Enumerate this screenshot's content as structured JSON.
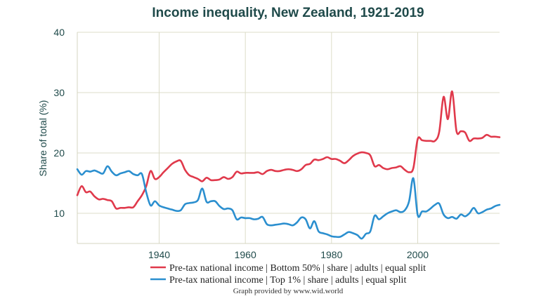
{
  "chart_data": {
    "type": "line",
    "title": "Income inequality, New Zealand, 1921-2019",
    "ylabel": "Share of total (%)",
    "xlabel": "",
    "xlim": [
      1921,
      2019
    ],
    "ylim": [
      5,
      40
    ],
    "x_ticks": [
      1940,
      1960,
      1980,
      2000
    ],
    "y_ticks": [
      10,
      20,
      30,
      40
    ],
    "grid": true,
    "legend_position": "bottom",
    "series": [
      {
        "name": "Pre-tax national income | Bottom 50% | share | adults | equal split",
        "color": "#e0394b",
        "points": [
          [
            1921,
            13.0
          ],
          [
            1922,
            14.5
          ],
          [
            1923,
            13.5
          ],
          [
            1924,
            13.6
          ],
          [
            1925,
            12.8
          ],
          [
            1926,
            12.3
          ],
          [
            1927,
            12.4
          ],
          [
            1928,
            12.2
          ],
          [
            1929,
            12.0
          ],
          [
            1930,
            10.8
          ],
          [
            1931,
            10.9
          ],
          [
            1932,
            10.9
          ],
          [
            1933,
            11.0
          ],
          [
            1934,
            11.0
          ],
          [
            1935,
            12.0
          ],
          [
            1936,
            13.0
          ],
          [
            1937,
            14.5
          ],
          [
            1938,
            17.0
          ],
          [
            1939,
            15.7
          ],
          [
            1940,
            16.0
          ],
          [
            1941,
            16.8
          ],
          [
            1942,
            17.5
          ],
          [
            1943,
            18.2
          ],
          [
            1944,
            18.6
          ],
          [
            1945,
            18.7
          ],
          [
            1946,
            17.2
          ],
          [
            1947,
            16.3
          ],
          [
            1948,
            16.0
          ],
          [
            1949,
            15.7
          ],
          [
            1950,
            15.3
          ],
          [
            1951,
            15.9
          ],
          [
            1952,
            15.5
          ],
          [
            1953,
            15.5
          ],
          [
            1954,
            15.6
          ],
          [
            1955,
            16.0
          ],
          [
            1956,
            15.7
          ],
          [
            1957,
            16.0
          ],
          [
            1958,
            16.9
          ],
          [
            1959,
            16.6
          ],
          [
            1960,
            16.7
          ],
          [
            1961,
            16.7
          ],
          [
            1962,
            16.7
          ],
          [
            1963,
            16.8
          ],
          [
            1964,
            16.5
          ],
          [
            1965,
            17.0
          ],
          [
            1966,
            17.2
          ],
          [
            1967,
            17.0
          ],
          [
            1968,
            17.0
          ],
          [
            1969,
            17.2
          ],
          [
            1970,
            17.3
          ],
          [
            1971,
            17.2
          ],
          [
            1972,
            17.0
          ],
          [
            1973,
            17.3
          ],
          [
            1974,
            18.0
          ],
          [
            1975,
            18.2
          ],
          [
            1976,
            18.9
          ],
          [
            1977,
            18.8
          ],
          [
            1978,
            19.0
          ],
          [
            1979,
            19.3
          ],
          [
            1980,
            19.0
          ],
          [
            1981,
            19.0
          ],
          [
            1982,
            18.7
          ],
          [
            1983,
            18.3
          ],
          [
            1984,
            18.8
          ],
          [
            1985,
            19.5
          ],
          [
            1986,
            19.9
          ],
          [
            1987,
            20.1
          ],
          [
            1988,
            20.0
          ],
          [
            1989,
            19.6
          ],
          [
            1990,
            17.8
          ],
          [
            1991,
            18.0
          ],
          [
            1992,
            17.5
          ],
          [
            1993,
            17.3
          ],
          [
            1994,
            17.5
          ],
          [
            1995,
            17.6
          ],
          [
            1996,
            17.8
          ],
          [
            1997,
            17.2
          ],
          [
            1998,
            16.8
          ],
          [
            1999,
            17.5
          ],
          [
            2000,
            22.3
          ],
          [
            2001,
            22.1
          ],
          [
            2002,
            22.0
          ],
          [
            2003,
            22.0
          ],
          [
            2004,
            22.0
          ],
          [
            2005,
            23.5
          ],
          [
            2006,
            29.3
          ],
          [
            2007,
            25.6
          ],
          [
            2008,
            30.2
          ],
          [
            2009,
            23.6
          ],
          [
            2010,
            23.6
          ],
          [
            2011,
            23.4
          ],
          [
            2012,
            22.0
          ],
          [
            2013,
            22.4
          ],
          [
            2014,
            22.4
          ],
          [
            2015,
            22.5
          ],
          [
            2016,
            23.0
          ],
          [
            2017,
            22.7
          ],
          [
            2018,
            22.7
          ],
          [
            2019,
            22.6
          ]
        ]
      },
      {
        "name": "Pre-tax national income | Top 1% | share | adults | equal split",
        "color": "#2b8fcf",
        "points": [
          [
            1921,
            17.3
          ],
          [
            1922,
            16.4
          ],
          [
            1923,
            17.0
          ],
          [
            1924,
            16.9
          ],
          [
            1925,
            17.1
          ],
          [
            1926,
            16.8
          ],
          [
            1927,
            16.6
          ],
          [
            1928,
            17.8
          ],
          [
            1929,
            16.9
          ],
          [
            1930,
            16.3
          ],
          [
            1931,
            16.6
          ],
          [
            1932,
            16.8
          ],
          [
            1933,
            17.0
          ],
          [
            1934,
            16.5
          ],
          [
            1935,
            16.3
          ],
          [
            1936,
            16.5
          ],
          [
            1937,
            13.5
          ],
          [
            1938,
            11.3
          ],
          [
            1939,
            12.0
          ],
          [
            1940,
            11.3
          ],
          [
            1941,
            11.0
          ],
          [
            1942,
            10.8
          ],
          [
            1943,
            10.6
          ],
          [
            1944,
            10.4
          ],
          [
            1945,
            10.5
          ],
          [
            1946,
            11.5
          ],
          [
            1947,
            11.7
          ],
          [
            1948,
            11.8
          ],
          [
            1949,
            12.2
          ],
          [
            1950,
            14.1
          ],
          [
            1951,
            11.9
          ],
          [
            1952,
            12.0
          ],
          [
            1953,
            12.0
          ],
          [
            1954,
            11.2
          ],
          [
            1955,
            10.7
          ],
          [
            1956,
            10.8
          ],
          [
            1957,
            10.5
          ],
          [
            1958,
            9.0
          ],
          [
            1959,
            9.3
          ],
          [
            1960,
            9.2
          ],
          [
            1961,
            9.2
          ],
          [
            1962,
            9.0
          ],
          [
            1963,
            9.1
          ],
          [
            1964,
            9.4
          ],
          [
            1965,
            8.2
          ],
          [
            1966,
            8.0
          ],
          [
            1967,
            8.1
          ],
          [
            1968,
            8.2
          ],
          [
            1969,
            8.3
          ],
          [
            1970,
            8.2
          ],
          [
            1971,
            8.0
          ],
          [
            1972,
            8.5
          ],
          [
            1973,
            9.3
          ],
          [
            1974,
            9.0
          ],
          [
            1975,
            7.5
          ],
          [
            1976,
            8.7
          ],
          [
            1977,
            7.0
          ],
          [
            1978,
            6.7
          ],
          [
            1979,
            6.5
          ],
          [
            1980,
            6.2
          ],
          [
            1981,
            6.1
          ],
          [
            1982,
            6.1
          ],
          [
            1983,
            6.5
          ],
          [
            1984,
            6.9
          ],
          [
            1985,
            6.7
          ],
          [
            1986,
            6.4
          ],
          [
            1987,
            5.8
          ],
          [
            1988,
            6.6
          ],
          [
            1989,
            7.0
          ],
          [
            1990,
            9.6
          ],
          [
            1991,
            9.0
          ],
          [
            1992,
            9.5
          ],
          [
            1993,
            10.0
          ],
          [
            1994,
            10.3
          ],
          [
            1995,
            10.5
          ],
          [
            1996,
            10.2
          ],
          [
            1997,
            10.5
          ],
          [
            1998,
            12.0
          ],
          [
            1999,
            15.8
          ],
          [
            2000,
            9.7
          ],
          [
            2001,
            10.3
          ],
          [
            2002,
            10.3
          ],
          [
            2003,
            10.8
          ],
          [
            2004,
            11.4
          ],
          [
            2005,
            11.6
          ],
          [
            2006,
            9.8
          ],
          [
            2007,
            9.2
          ],
          [
            2008,
            9.4
          ],
          [
            2009,
            9.1
          ],
          [
            2010,
            9.8
          ],
          [
            2011,
            9.5
          ],
          [
            2012,
            10.0
          ],
          [
            2013,
            10.9
          ],
          [
            2014,
            10.0
          ],
          [
            2015,
            10.2
          ],
          [
            2016,
            10.6
          ],
          [
            2017,
            10.8
          ],
          [
            2018,
            11.2
          ],
          [
            2019,
            11.4
          ]
        ]
      }
    ],
    "credit": "Graph provided by www.wid.world"
  }
}
